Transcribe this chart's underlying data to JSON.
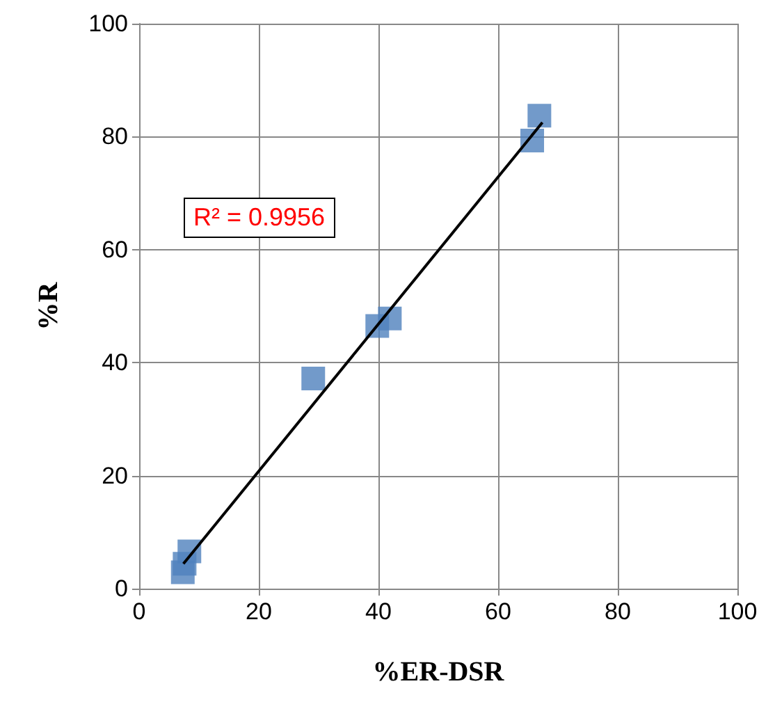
{
  "chart_data": {
    "type": "scatter",
    "xlabel": "%ER-DSR",
    "ylabel": "%R",
    "xlim": [
      0,
      100
    ],
    "ylim": [
      0,
      100
    ],
    "xticks": [
      0,
      20,
      40,
      60,
      80,
      100
    ],
    "yticks": [
      0,
      20,
      40,
      60,
      80,
      100
    ],
    "grid": true,
    "marker": "square",
    "series": [
      {
        "color": "#4f81bd",
        "x": [
          7.3,
          7.6,
          8.4,
          29.1,
          39.8,
          41.9,
          65.7,
          66.9
        ],
        "values": [
          2.9,
          4.4,
          6.6,
          37.2,
          46.5,
          47.8,
          79.3,
          83.7
        ]
      },
      {
        "type": "line",
        "color": "#000000",
        "marker": "none",
        "x": [
          7.4,
          67.4
        ],
        "values": [
          4.4,
          82.5
        ]
      }
    ],
    "annotations": [
      "R² = 0.9956"
    ]
  }
}
